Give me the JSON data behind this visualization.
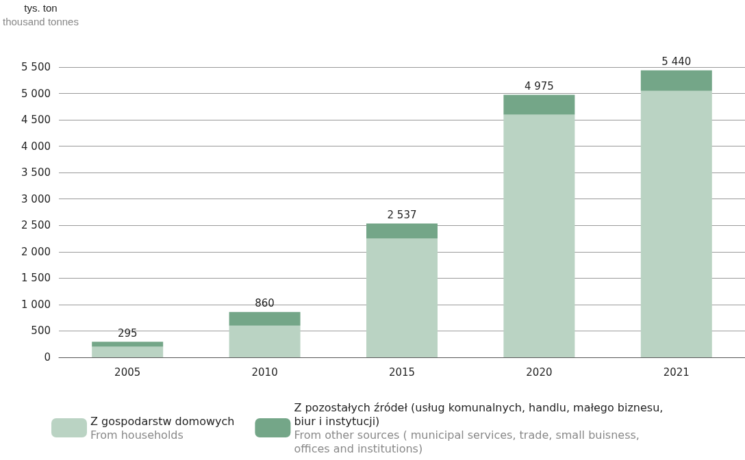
{
  "chart_data": {
    "type": "bar",
    "stacked": true,
    "ylabel": "tys. ton\nthousand tonnes",
    "categories": [
      "2005",
      "2010",
      "2015",
      "2020",
      "2021"
    ],
    "series": [
      {
        "name": "Z gospodarstw domowych\nFrom households",
        "color": "#bad3c3",
        "values": [
          200,
          600,
          2250,
          4600,
          5050
        ]
      },
      {
        "name": "Z pozostałych źródeł (usług komunalnych, handlu, małego biznesu, biur i instytucji)\nFrom other sources ( municipal services, trade, small buisness, offices and institutions)",
        "color": "#74a688",
        "values": [
          95,
          260,
          287,
          375,
          390
        ]
      }
    ],
    "totals": [
      "295",
      "860",
      "2 537",
      "4 975",
      "5 440"
    ],
    "ylim": [
      0,
      5500
    ],
    "yticks": [
      0,
      500,
      {
        "value": 1000,
        "label": "1 000"
      },
      {
        "value": 1500,
        "label": "1 500"
      },
      {
        "value": 2000,
        "label": "2 000"
      },
      {
        "value": 2500,
        "label": "2 500"
      },
      {
        "value": 3000,
        "label": "3 000"
      },
      {
        "value": 3500,
        "label": "3 500"
      },
      {
        "value": 4000,
        "label": "4 000"
      },
      {
        "value": 4500,
        "label": "4 500"
      },
      {
        "value": 5000,
        "label": "5 000"
      },
      {
        "value": 5500,
        "label": "5 500"
      }
    ],
    "grid": "y",
    "legend": "bottom left"
  }
}
